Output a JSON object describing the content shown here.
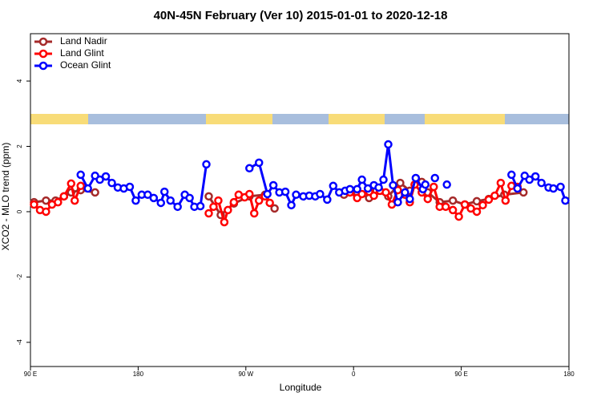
{
  "chart_data": {
    "type": "line",
    "title": "40N-45N February (Ver 10)   2015-01-01 to 2020-12-18",
    "x_label": "Longitude",
    "y_label": "XCO2 - MLO trend (ppm)",
    "xlim": [
      90,
      540
    ],
    "ylim": [
      -4.74,
      5.45
    ],
    "xticks": [
      {
        "value": 90,
        "label": "90 E"
      },
      180,
      {
        "value": 270,
        "label": "90 W"
      },
      {
        "value": 360,
        "label": "0"
      },
      {
        "value": 450,
        "label": "90 E"
      },
      {
        "value": 540,
        "label": "180"
      }
    ],
    "yticks": [
      -4,
      -2,
      0,
      2,
      4
    ],
    "legend": "top-left",
    "series": [
      {
        "name": "Land Nadir",
        "color": "#a52a2a",
        "x": [
          93,
          103,
          111,
          118,
          124,
          132,
          144,
          null,
          239,
          249,
          260,
          273,
          286,
          294,
          null,
          352,
          363,
          373,
          379,
          389,
          399,
          407,
          417,
          422,
          432,
          443,
          453,
          463,
          473,
          486,
          502
        ],
        "values": [
          0.29,
          0.34,
          0.34,
          0.47,
          0.59,
          0.66,
          0.59,
          null,
          0.47,
          -0.1,
          0.25,
          0.47,
          0.52,
          0.1,
          null,
          0.52,
          0.59,
          0.42,
          0.64,
          0.47,
          0.88,
          0.64,
          0.91,
          0.59,
          0.29,
          0.34,
          0.22,
          0.32,
          0.39,
          0.52,
          0.59
        ]
      },
      {
        "name": "Land Glint",
        "color": "#ff0000",
        "x": [
          93,
          98,
          103,
          108,
          113,
          118,
          124,
          127,
          132,
          null,
          239,
          243,
          247,
          252,
          255,
          260,
          264,
          269,
          273,
          277,
          281,
          286,
          290,
          null,
          357,
          363,
          367,
          373,
          377,
          382,
          387,
          392,
          397,
          403,
          407,
          411,
          417,
          422,
          427,
          432,
          437,
          443,
          448,
          453,
          458,
          463,
          468,
          473,
          478,
          483,
          487,
          492,
          497
        ],
        "values": [
          0.22,
          0.05,
          0,
          0.22,
          0.29,
          0.47,
          0.86,
          0.34,
          0.79,
          null,
          -0.05,
          0.15,
          0.34,
          -0.32,
          0.05,
          0.29,
          0.52,
          0.44,
          0.54,
          -0.05,
          0.34,
          0.47,
          0.27,
          null,
          0.59,
          0.42,
          0.54,
          0.61,
          0.49,
          0.64,
          0.59,
          0.22,
          0.66,
          0.52,
          0.29,
          0.83,
          0.59,
          0.39,
          0.76,
          0.15,
          0.15,
          0.05,
          -0.15,
          0.22,
          0.1,
          0,
          0.2,
          0.37,
          0.49,
          0.88,
          0.34,
          0.79,
          0.76
        ]
      },
      {
        "name": "Ocean Glint",
        "color": "#0000ff",
        "x": [
          132,
          138,
          144,
          148,
          153,
          158,
          163,
          168,
          173,
          178,
          183,
          188,
          193,
          199,
          202,
          207,
          213,
          219,
          223,
          227,
          232,
          237,
          null,
          273,
          281,
          288,
          293,
          298,
          303,
          308,
          312,
          318,
          323,
          328,
          332,
          338,
          343,
          348,
          353,
          357,
          363,
          367,
          372,
          377,
          381,
          385,
          389,
          393,
          397,
          403,
          407,
          412,
          418,
          420,
          null,
          428,
          null,
          438,
          null,
          492,
          497,
          503,
          507,
          512,
          517,
          523,
          527,
          533,
          537
        ],
        "values": [
          1.13,
          0.71,
          1.1,
          0.98,
          1.08,
          0.88,
          0.74,
          0.71,
          0.76,
          0.34,
          0.52,
          0.52,
          0.42,
          0.27,
          0.61,
          0.34,
          0.15,
          0.52,
          0.42,
          0.15,
          0.17,
          1.45,
          null,
          1.33,
          1.5,
          0.54,
          0.81,
          0.59,
          0.61,
          0.2,
          0.52,
          0.47,
          0.49,
          0.47,
          0.54,
          0.37,
          0.79,
          0.59,
          0.64,
          0.69,
          0.69,
          0.98,
          0.71,
          0.81,
          0.74,
          0.98,
          2.06,
          0.81,
          0.29,
          0.59,
          0.39,
          1.03,
          0.69,
          0.83,
          null,
          1.03,
          null,
          0.83,
          null,
          1.13,
          0.71,
          1.1,
          0.98,
          1.08,
          0.88,
          0.74,
          0.71,
          0.76,
          0.34
        ]
      }
    ]
  }
}
